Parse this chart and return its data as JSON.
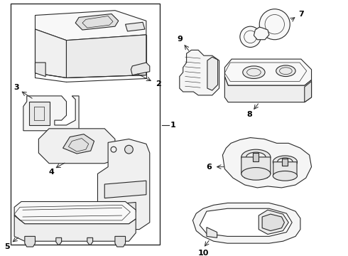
{
  "bg": "#ffffff",
  "lc": "#2a2a2a",
  "lw": 0.8,
  "fig_w": 4.9,
  "fig_h": 3.6,
  "dpi": 100
}
